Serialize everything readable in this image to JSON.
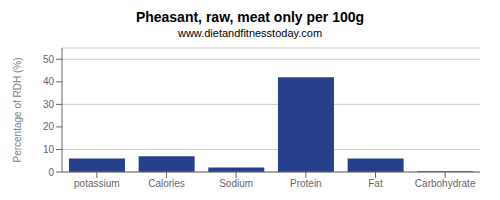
{
  "chart_data": {
    "type": "bar",
    "title": "Pheasant, raw, meat only per 100g",
    "subtitle": "www.dietandfitnesstoday.com",
    "categories": [
      "potassium",
      "Calories",
      "Sodium",
      "Protein",
      "Fat",
      "Carbohydrate"
    ],
    "values": [
      6,
      7,
      2,
      42,
      6,
      0.3
    ],
    "color": "#27408B",
    "ylabel": "Percentage of RDH (%)",
    "ylim": [
      0,
      55
    ],
    "yticks": [
      0,
      10,
      20,
      30,
      40,
      50
    ],
    "grid": true
  }
}
